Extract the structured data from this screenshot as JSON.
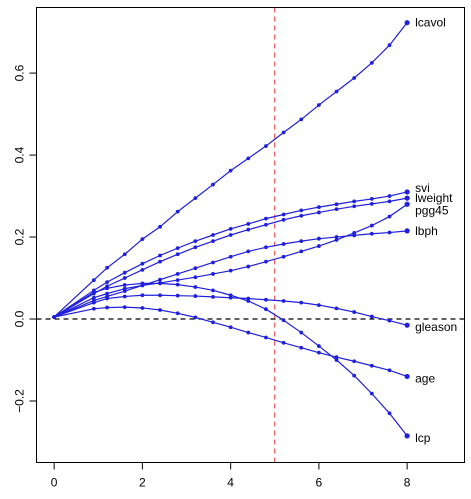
{
  "chart_data": {
    "type": "line",
    "title": "",
    "xlabel": "",
    "ylabel": "",
    "xlim": [
      -0.4,
      9.3
    ],
    "ylim": [
      -0.35,
      0.76
    ],
    "x_ticks": [
      0,
      2,
      4,
      6,
      8
    ],
    "y_ticks": [
      -0.2,
      0.0,
      0.2,
      0.4,
      0.6
    ],
    "x_tick_labels": [
      "0",
      "2",
      "4",
      "6",
      "8"
    ],
    "y_tick_labels": [
      "−0.2",
      "0.0",
      "0.2",
      "0.4",
      "0.6"
    ],
    "reference_lines": {
      "horizontal": {
        "y": 0,
        "color": "#000000",
        "style": "dashed"
      },
      "vertical": {
        "x": 5,
        "color": "#dd3333",
        "style": "dashed"
      }
    },
    "series_color": "#1f1fdd",
    "point_x": [
      0,
      0.9,
      1.2,
      1.6,
      2.0,
      2.4,
      2.8,
      3.2,
      3.6,
      4.0,
      4.4,
      4.8,
      5.2,
      5.6,
      6.0,
      6.4,
      6.8,
      7.2,
      7.6,
      8.0
    ],
    "series": [
      {
        "name": "lcavol",
        "values": [
          0.005,
          0.095,
          0.125,
          0.158,
          0.195,
          0.225,
          0.262,
          0.295,
          0.328,
          0.362,
          0.392,
          0.422,
          0.455,
          0.487,
          0.522,
          0.555,
          0.588,
          0.625,
          0.668,
          0.723
        ]
      },
      {
        "name": "svi",
        "values": [
          0.005,
          0.07,
          0.09,
          0.113,
          0.135,
          0.155,
          0.173,
          0.19,
          0.205,
          0.22,
          0.232,
          0.245,
          0.255,
          0.265,
          0.273,
          0.28,
          0.287,
          0.293,
          0.3,
          0.31
        ]
      },
      {
        "name": "lweight",
        "values": [
          0.005,
          0.062,
          0.08,
          0.1,
          0.12,
          0.14,
          0.158,
          0.175,
          0.19,
          0.205,
          0.218,
          0.23,
          0.242,
          0.252,
          0.26,
          0.268,
          0.275,
          0.281,
          0.287,
          0.295
        ]
      },
      {
        "name": "pgg45",
        "values": [
          0.005,
          0.052,
          0.062,
          0.074,
          0.082,
          0.088,
          0.095,
          0.102,
          0.11,
          0.118,
          0.128,
          0.14,
          0.152,
          0.165,
          0.178,
          0.193,
          0.21,
          0.228,
          0.25,
          0.28
        ]
      },
      {
        "name": "lbph",
        "values": [
          0.005,
          0.045,
          0.055,
          0.068,
          0.082,
          0.096,
          0.11,
          0.124,
          0.138,
          0.152,
          0.165,
          0.175,
          0.183,
          0.19,
          0.196,
          0.2,
          0.204,
          0.208,
          0.211,
          0.215
        ]
      },
      {
        "name": "gleason",
        "values": [
          0.005,
          0.04,
          0.05,
          0.055,
          0.058,
          0.058,
          0.057,
          0.056,
          0.054,
          0.052,
          0.05,
          0.047,
          0.044,
          0.04,
          0.034,
          0.026,
          0.017,
          0.006,
          -0.004,
          -0.015
        ]
      },
      {
        "name": "age",
        "values": [
          0.005,
          0.025,
          0.028,
          0.029,
          0.027,
          0.022,
          0.014,
          0.004,
          -0.008,
          -0.02,
          -0.033,
          -0.045,
          -0.058,
          -0.07,
          -0.082,
          -0.093,
          -0.103,
          -0.114,
          -0.125,
          -0.14
        ]
      },
      {
        "name": "lcp",
        "values": [
          0.005,
          0.065,
          0.075,
          0.083,
          0.087,
          0.087,
          0.084,
          0.078,
          0.07,
          0.058,
          0.044,
          0.024,
          -0.003,
          -0.033,
          -0.066,
          -0.1,
          -0.138,
          -0.182,
          -0.23,
          -0.285
        ]
      }
    ]
  }
}
